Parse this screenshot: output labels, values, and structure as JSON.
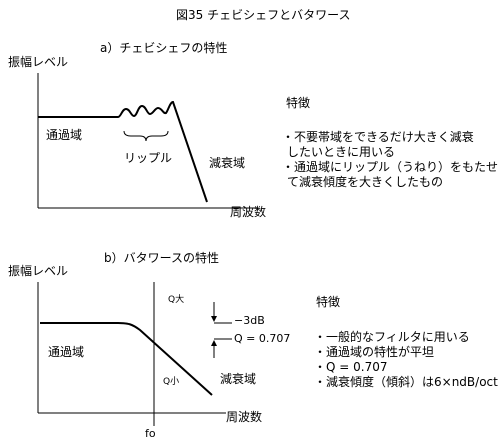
{
  "title": "図35 チェビシェフとバタワース",
  "chebyshev": {
    "heading": "a）チェビシェフの特性",
    "y_axis_label": "振幅レベル",
    "x_axis_label": "周波数",
    "passband_label": "通過域",
    "ripple_label": "リップル",
    "stopband_label": "減衰域",
    "features_heading": "特徴",
    "features": [
      "・不要帯域をできるだけ大きく減衰",
      "したいときに用いる",
      "・通過域にリップル（うねり）をもたせ",
      "て減衰傾度を大きくしたもの"
    ]
  },
  "butterworth": {
    "heading": "b）バタワースの特性",
    "y_axis_label": "振幅レベル",
    "x_axis_label": "周波数",
    "passband_label": "通過域",
    "stopband_label": "減衰域",
    "q_large_label": "Q大",
    "q_small_label": "Q小",
    "minus3db_label": "−3dB",
    "q0707_label": "Q = 0.707",
    "fo_label": "fo",
    "features_heading": "特徴",
    "features": [
      "・一般的なフィルタに用いる",
      "・通過域の特性が平坦",
      "・Q = 0.707",
      "・減衰傾度（傾斜）は6×ndB/oct"
    ]
  }
}
